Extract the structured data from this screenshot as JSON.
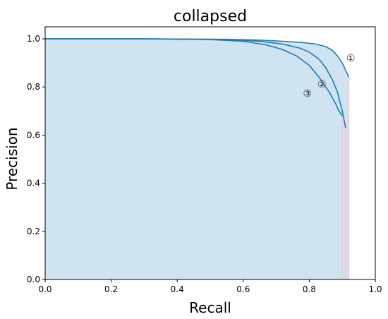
{
  "chart_data": {
    "type": "line",
    "title": "collapsed",
    "xlabel": "Recall",
    "ylabel": "Precision",
    "xlim": [
      0.0,
      1.0
    ],
    "ylim": [
      0.0,
      1.05
    ],
    "xticks": [
      "0.0",
      "0.2",
      "0.4",
      "0.6",
      "0.8",
      "1.0"
    ],
    "yticks": [
      "0.0",
      "0.2",
      "0.4",
      "0.6",
      "0.8",
      "1.0"
    ],
    "grid": false,
    "legend": "none",
    "fill_under": true,
    "colors": {
      "line": "#1f7bb4",
      "fill": "#cfe3f0",
      "fill_edge": "#f4c0d0"
    },
    "series": [
      {
        "label": "①",
        "x": [
          0.0,
          0.3,
          0.55,
          0.65,
          0.72,
          0.78,
          0.82,
          0.85,
          0.87,
          0.885,
          0.9,
          0.91,
          0.92
        ],
        "y": [
          1.0,
          1.0,
          0.998,
          0.995,
          0.99,
          0.985,
          0.978,
          0.968,
          0.952,
          0.93,
          0.9,
          0.87,
          0.84
        ]
      },
      {
        "label": "②",
        "x": [
          0.0,
          0.3,
          0.55,
          0.65,
          0.72,
          0.77,
          0.8,
          0.83,
          0.85,
          0.87,
          0.885,
          0.9,
          0.91
        ],
        "y": [
          1.0,
          1.0,
          0.997,
          0.99,
          0.978,
          0.962,
          0.945,
          0.915,
          0.88,
          0.83,
          0.78,
          0.7,
          0.63
        ]
      },
      {
        "label": "③",
        "x": [
          0.0,
          0.3,
          0.5,
          0.6,
          0.67,
          0.72,
          0.76,
          0.8,
          0.83,
          0.86,
          0.88,
          0.89,
          0.9
        ],
        "y": [
          1.0,
          1.0,
          0.997,
          0.99,
          0.975,
          0.955,
          0.93,
          0.89,
          0.84,
          0.78,
          0.73,
          0.7,
          0.68
        ]
      }
    ]
  }
}
